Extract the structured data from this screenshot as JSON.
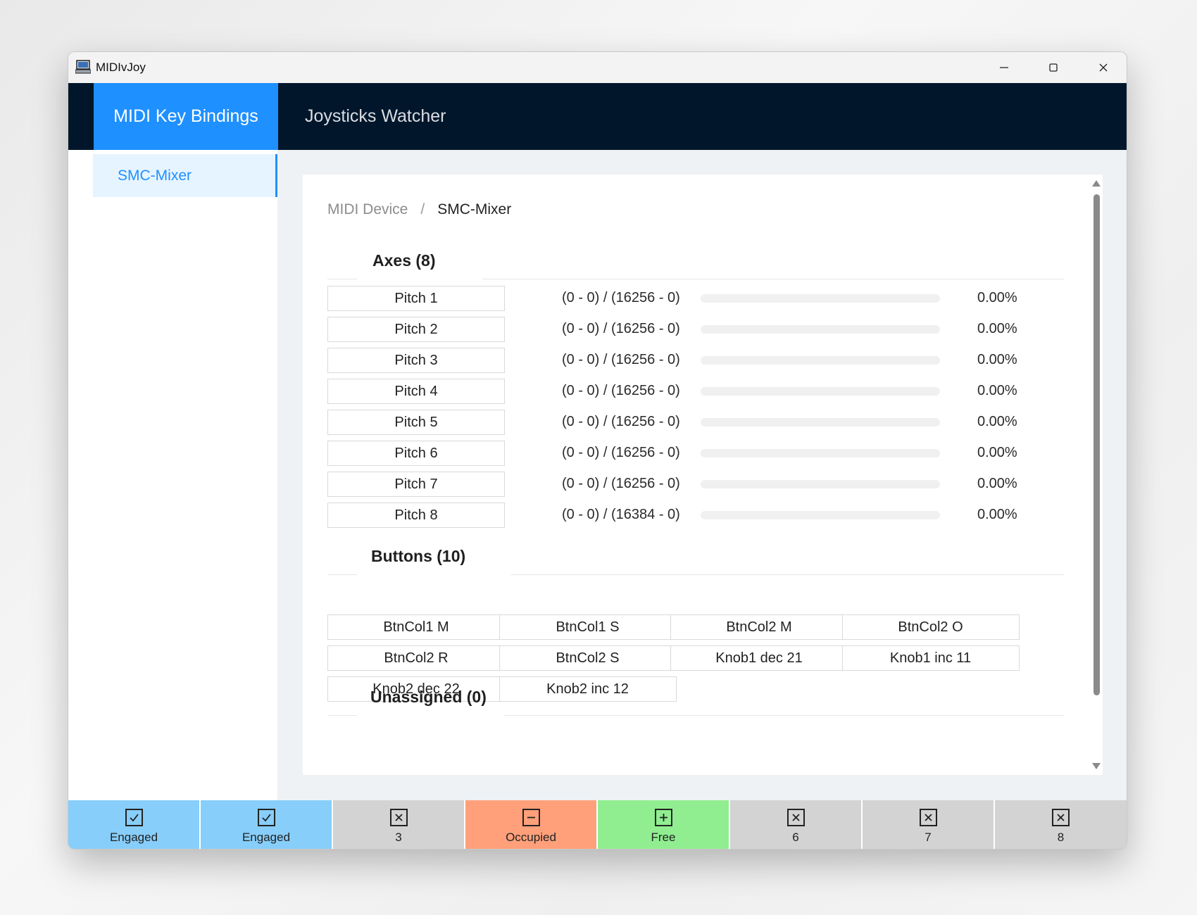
{
  "window": {
    "title": "MIDIvJoy"
  },
  "nav": {
    "tabs": [
      {
        "label": "MIDI Key Bindings",
        "active": true
      },
      {
        "label": "Joysticks Watcher",
        "active": false
      }
    ]
  },
  "sidebar": {
    "items": [
      {
        "label": "SMC-Mixer",
        "selected": true
      }
    ]
  },
  "breadcrumb": {
    "parent": "MIDI Device",
    "separator": "/",
    "current": "SMC-Mixer"
  },
  "sections": {
    "axes": {
      "title": "Axes (8)"
    },
    "buttons": {
      "title": "Buttons (10)"
    },
    "unassigned": {
      "title": "Unassigned (0)"
    }
  },
  "axes": [
    {
      "name": "Pitch 1",
      "range": "(0 - 0) / (16256 - 0)",
      "progress": 0,
      "percent": "0.00%"
    },
    {
      "name": "Pitch 2",
      "range": "(0 - 0) / (16256 - 0)",
      "progress": 0,
      "percent": "0.00%"
    },
    {
      "name": "Pitch 3",
      "range": "(0 - 0) / (16256 - 0)",
      "progress": 0,
      "percent": "0.00%"
    },
    {
      "name": "Pitch 4",
      "range": "(0 - 0) / (16256 - 0)",
      "progress": 0,
      "percent": "0.00%"
    },
    {
      "name": "Pitch 5",
      "range": "(0 - 0) / (16256 - 0)",
      "progress": 0,
      "percent": "0.00%"
    },
    {
      "name": "Pitch 6",
      "range": "(0 - 0) / (16256 - 0)",
      "progress": 0,
      "percent": "0.00%"
    },
    {
      "name": "Pitch 7",
      "range": "(0 - 0) / (16256 - 0)",
      "progress": 0,
      "percent": "0.00%"
    },
    {
      "name": "Pitch 8",
      "range": "(0 - 0) / (16384 - 0)",
      "progress": 0,
      "percent": "0.00%"
    }
  ],
  "buttons": [
    "BtnCol1 M",
    "BtnCol1 S",
    "BtnCol2 M",
    "BtnCol2 O",
    "BtnCol2 R",
    "BtnCol2 S",
    "Knob1 dec 21",
    "Knob1 inc 11",
    "Knob2 dec 22",
    "Knob2 inc 12"
  ],
  "status_slots": [
    {
      "label": "Engaged",
      "icon": "check-box-icon",
      "color": "#87cefa"
    },
    {
      "label": "Engaged",
      "icon": "check-box-icon",
      "color": "#87cefa"
    },
    {
      "label": "3",
      "icon": "x-box-icon",
      "color": "#d3d3d3"
    },
    {
      "label": "Occupied",
      "icon": "minus-box-icon",
      "color": "#ffa07a"
    },
    {
      "label": "Free",
      "icon": "plus-box-icon",
      "color": "#90ee90"
    },
    {
      "label": "6",
      "icon": "x-box-icon",
      "color": "#d3d3d3"
    },
    {
      "label": "7",
      "icon": "x-box-icon",
      "color": "#d3d3d3"
    },
    {
      "label": "8",
      "icon": "x-box-icon",
      "color": "#d3d3d3"
    }
  ],
  "colors": {
    "accent": "#1e90ff",
    "nav_bg": "#01162b"
  }
}
